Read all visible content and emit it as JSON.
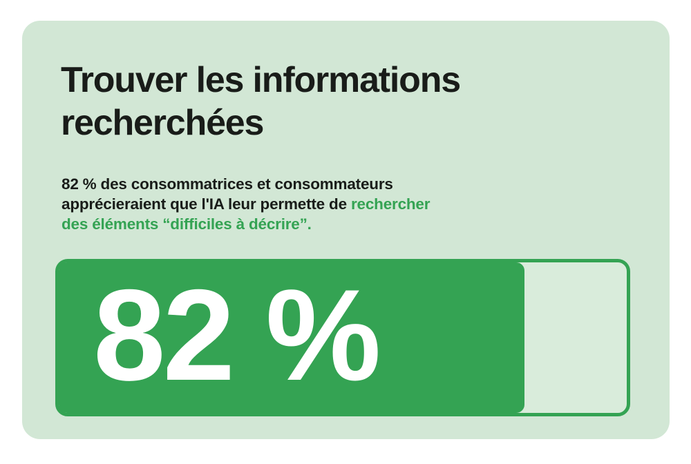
{
  "page": {
    "background": "#ffffff"
  },
  "card": {
    "background": "#d2e7d5",
    "title": "Trouver les informations recherchées",
    "subtitle": {
      "line1": "82 % des consommatrices et consommateurs",
      "line2_black": "apprécieraient que l'IA leur permette de",
      "line2_green": "rechercher",
      "line3_green": "des éléments “difficiles à décrire”."
    }
  },
  "progress": {
    "value_label": "82 %",
    "percent": 82,
    "fill_color": "#34a353",
    "border_color": "#34a353",
    "track_color": "#d9ecdb",
    "value_text_color": "#ffffff"
  },
  "colors": {
    "accent_green": "#34a353",
    "text_black": "#191c19",
    "card_background": "#d2e7d5",
    "page_background": "#ffffff"
  },
  "chart_data": {
    "type": "bar",
    "orientation": "horizontal",
    "title": "Trouver les informations recherchées",
    "categories": [
      "Consommatrices et consommateurs qui apprécieraient que l'IA leur permette de rechercher des éléments “difficiles à décrire”"
    ],
    "values": [
      82
    ],
    "value_labels": [
      "82 %"
    ],
    "unit": "%",
    "xlim": [
      0,
      100
    ],
    "grid": false,
    "legend": false
  }
}
